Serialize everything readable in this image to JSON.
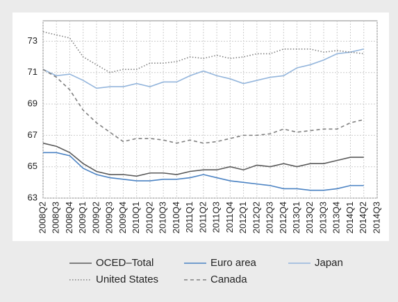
{
  "chart_data": {
    "type": "line",
    "categories": [
      "2008Q2",
      "2008Q3",
      "2008Q4",
      "2009Q1",
      "2009Q2",
      "2009Q3",
      "2009Q4",
      "2010Q1",
      "2010Q2",
      "2010Q3",
      "2010Q4",
      "2011Q1",
      "2011Q2",
      "2011Q3",
      "2011Q4",
      "2012Q1",
      "2012Q2",
      "2012Q3",
      "2012Q4",
      "2013Q1",
      "2013Q2",
      "2013Q3",
      "2013Q4",
      "2014Q1",
      "2014Q2",
      "2014Q3"
    ],
    "series": [
      {
        "name": "OCED–Total",
        "color": "#595959",
        "dash": "solid",
        "values": [
          66.5,
          66.3,
          65.9,
          65.2,
          64.7,
          64.5,
          64.5,
          64.4,
          64.6,
          64.6,
          64.5,
          64.7,
          64.8,
          64.8,
          65.0,
          64.8,
          65.1,
          65.0,
          65.2,
          65.0,
          65.2,
          65.2,
          65.4,
          65.6,
          65.6,
          null
        ]
      },
      {
        "name": "Euro area",
        "color": "#4a82c3",
        "dash": "solid",
        "values": [
          65.9,
          65.9,
          65.7,
          64.9,
          64.5,
          64.3,
          64.2,
          64.1,
          64.1,
          64.2,
          64.2,
          64.3,
          64.5,
          64.3,
          64.1,
          64.0,
          63.9,
          63.8,
          63.6,
          63.6,
          63.5,
          63.5,
          63.6,
          63.8,
          63.8,
          null
        ]
      },
      {
        "name": "Japan",
        "color": "#93b5dc",
        "dash": "solid",
        "values": [
          71.2,
          70.8,
          70.9,
          70.5,
          70.0,
          70.1,
          70.1,
          70.3,
          70.1,
          70.4,
          70.4,
          70.8,
          71.1,
          70.8,
          70.6,
          70.3,
          70.5,
          70.7,
          70.8,
          71.3,
          71.5,
          71.8,
          72.2,
          72.3,
          72.5,
          null
        ]
      },
      {
        "name": "United States",
        "color": "#7f7f7f",
        "dash": "dotted",
        "values": [
          73.6,
          73.4,
          73.2,
          72.0,
          71.5,
          71.0,
          71.2,
          71.2,
          71.6,
          71.6,
          71.7,
          72.0,
          71.9,
          72.1,
          71.9,
          72.0,
          72.2,
          72.2,
          72.5,
          72.5,
          72.5,
          72.3,
          72.4,
          72.3,
          72.2,
          null
        ]
      },
      {
        "name": "Canada",
        "color": "#7f7f7f",
        "dash": "dashed",
        "values": [
          71.2,
          70.7,
          69.9,
          68.6,
          67.8,
          67.2,
          66.6,
          66.8,
          66.8,
          66.7,
          66.5,
          66.7,
          66.5,
          66.6,
          66.8,
          67.0,
          67.0,
          67.1,
          67.4,
          67.2,
          67.3,
          67.4,
          67.4,
          67.8,
          68.0,
          null
        ]
      }
    ],
    "ylim": [
      63,
      74.3
    ],
    "yticks": [
      63,
      65,
      67,
      69,
      71,
      73
    ],
    "grid": true
  }
}
